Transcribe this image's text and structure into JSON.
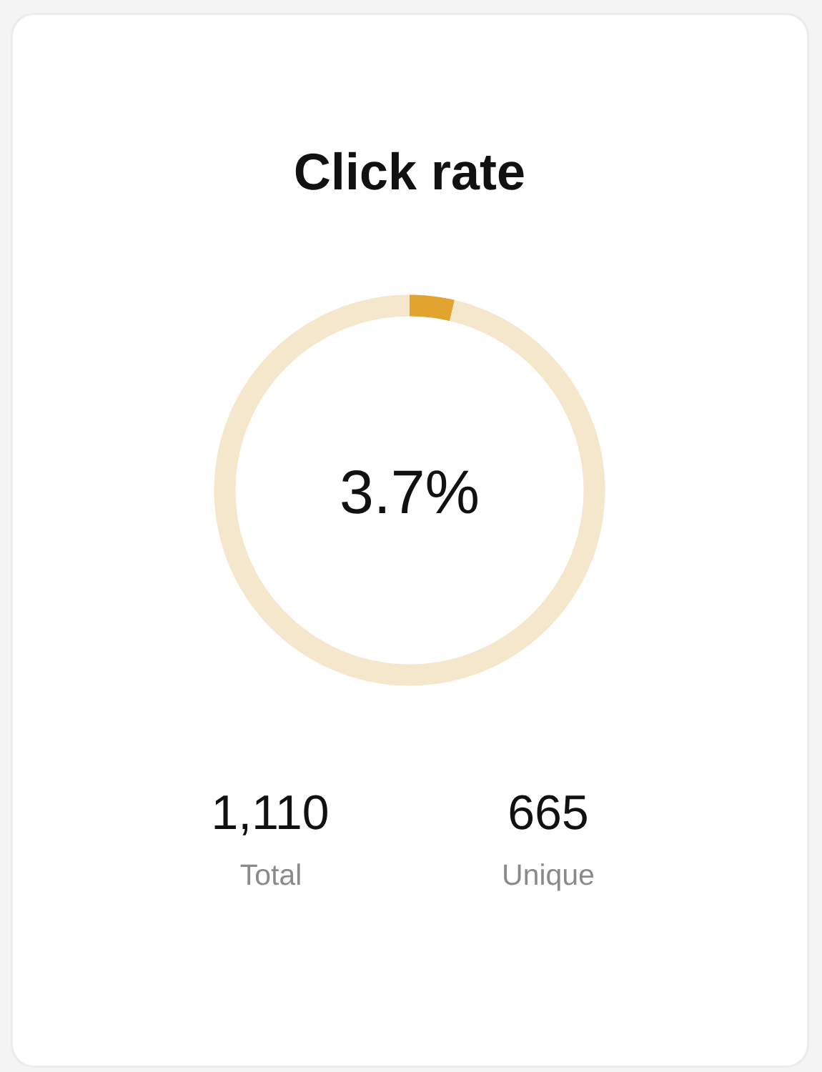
{
  "chart_data": {
    "type": "donut",
    "title": "Click rate",
    "categories": [
      null,
      null
    ],
    "values": [
      3.7,
      96.3
    ],
    "colors": [
      "#e3a32f",
      "#f5e7cc"
    ],
    "annotations": [
      "3.7%",
      "1,110",
      "Total",
      "665",
      "Unique"
    ]
  }
}
